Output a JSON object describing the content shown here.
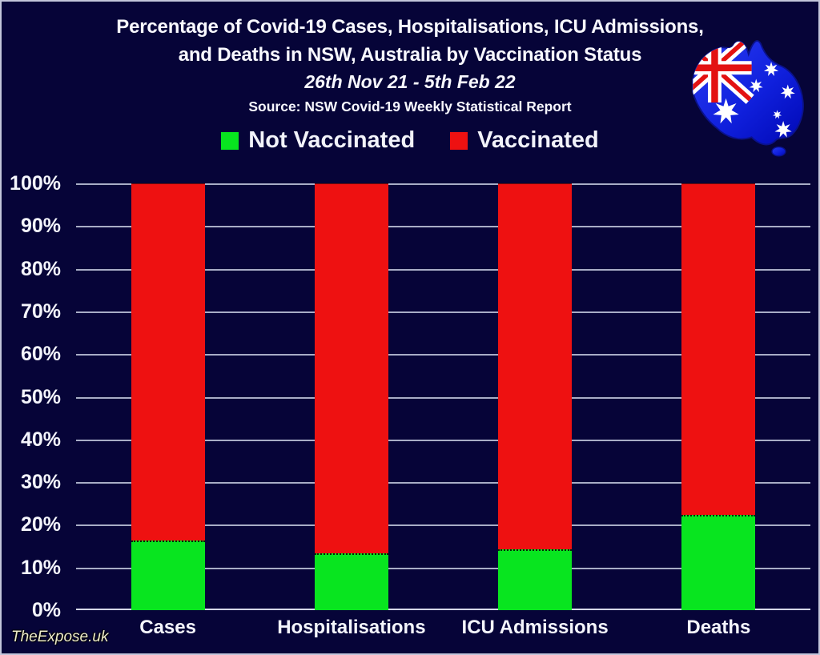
{
  "page": {
    "background_color": "#060438",
    "border_color": "#c2c6da"
  },
  "header": {
    "title_line1": "Percentage of Covid-19 Cases, Hospitalisations, ICU Admissions,",
    "title_line2": "and Deaths in NSW, Australia by Vaccination Status",
    "date_range": "26th Nov 21 - 5th Feb 22",
    "source": "Source: NSW Covid-19 Weekly Statistical Report"
  },
  "watermark": {
    "text": "TheExpose.uk"
  },
  "flag": {
    "icon": "australia-map-flag-icon"
  },
  "chart_data": {
    "type": "bar",
    "stacked": true,
    "title": "Percentage of Covid-19 Cases, Hospitalisations, ICU Admissions, and Deaths in NSW, Australia by Vaccination Status",
    "subtitle": "26th Nov 21 - 5th Feb 22",
    "source": "NSW Covid-19 Weekly Statistical Report",
    "categories": [
      "Cases",
      "Hospitalisations",
      "ICU Admissions",
      "Deaths"
    ],
    "series": [
      {
        "name": "Not Vaccinated",
        "color": "#08e51f",
        "values": [
          16,
          13,
          14,
          22
        ]
      },
      {
        "name": "Vaccinated",
        "color": "#ee1111",
        "values": [
          84,
          87,
          86,
          78
        ]
      }
    ],
    "xlabel": "",
    "ylabel": "",
    "ylim": [
      0,
      100
    ],
    "ytick_step": 10,
    "ytick_suffix": "%",
    "grid": "horizontal",
    "gridline_color": "#c6cbdf",
    "legend_position": "top"
  }
}
